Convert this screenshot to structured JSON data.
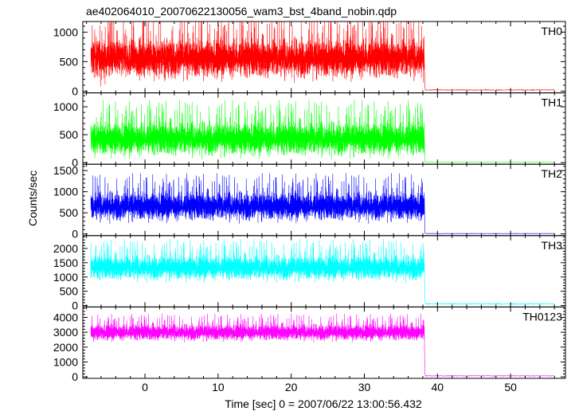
{
  "chart_data": {
    "type": "line",
    "title": "ae402064010_20070622130056_wam3_bst_4band_nobin.qdp",
    "xlabel": "Time [sec] 0 = 2007/06/22 13:00:56.432",
    "ylabel": "Counts/sec",
    "xlim": [
      -8.5,
      57.5
    ],
    "x_ticks": [
      0,
      10,
      20,
      30,
      40,
      50
    ],
    "x_tick_labels": [
      "0",
      "10",
      "20",
      "30",
      "40",
      "50"
    ],
    "burst_end": 38.2,
    "data_end": 56.0,
    "panels": [
      {
        "name": "TH0",
        "color": "#ff0000",
        "ylim": [
          -30,
          1180
        ],
        "y_ticks": [
          0,
          500,
          1000
        ],
        "y_tick_labels": [
          "0",
          "500",
          "1000"
        ],
        "mean": 560,
        "spread": 560,
        "floor": 0,
        "cap": 1180,
        "tail": 20
      },
      {
        "name": "TH1",
        "color": "#00ff00",
        "ylim": [
          -30,
          1250
        ],
        "y_ticks": [
          0,
          500,
          1000
        ],
        "y_tick_labels": [
          "0",
          "500",
          "1000"
        ],
        "mean": 430,
        "spread": 500,
        "floor": 0,
        "cap": 1250,
        "tail": 5
      },
      {
        "name": "TH2",
        "color": "#0000ff",
        "ylim": [
          -40,
          1650
        ],
        "y_ticks": [
          0,
          500,
          1000,
          1500
        ],
        "y_tick_labels": [
          "0",
          "500",
          "1000",
          "1500"
        ],
        "mean": 660,
        "spread": 560,
        "floor": 0,
        "cap": 1650,
        "tail": 10
      },
      {
        "name": "TH3",
        "color": "#00ffff",
        "ylim": [
          -50,
          2450
        ],
        "y_ticks": [
          0,
          500,
          1000,
          1500,
          2000
        ],
        "y_tick_labels": [
          "0",
          "500",
          "1000",
          "1500",
          "2000"
        ],
        "mean": 1330,
        "spread": 720,
        "floor": 0,
        "cap": 2450,
        "tail": 60
      },
      {
        "name": "TH0123",
        "color": "#ff00ff",
        "ylim": [
          -100,
          4700
        ],
        "y_ticks": [
          0,
          1000,
          2000,
          3000,
          4000
        ],
        "y_tick_labels": [
          "0",
          "1000",
          "2000",
          "3000",
          "4000"
        ],
        "mean": 3000,
        "spread": 900,
        "floor": 900,
        "cap": 4700,
        "tail": 70
      }
    ]
  }
}
